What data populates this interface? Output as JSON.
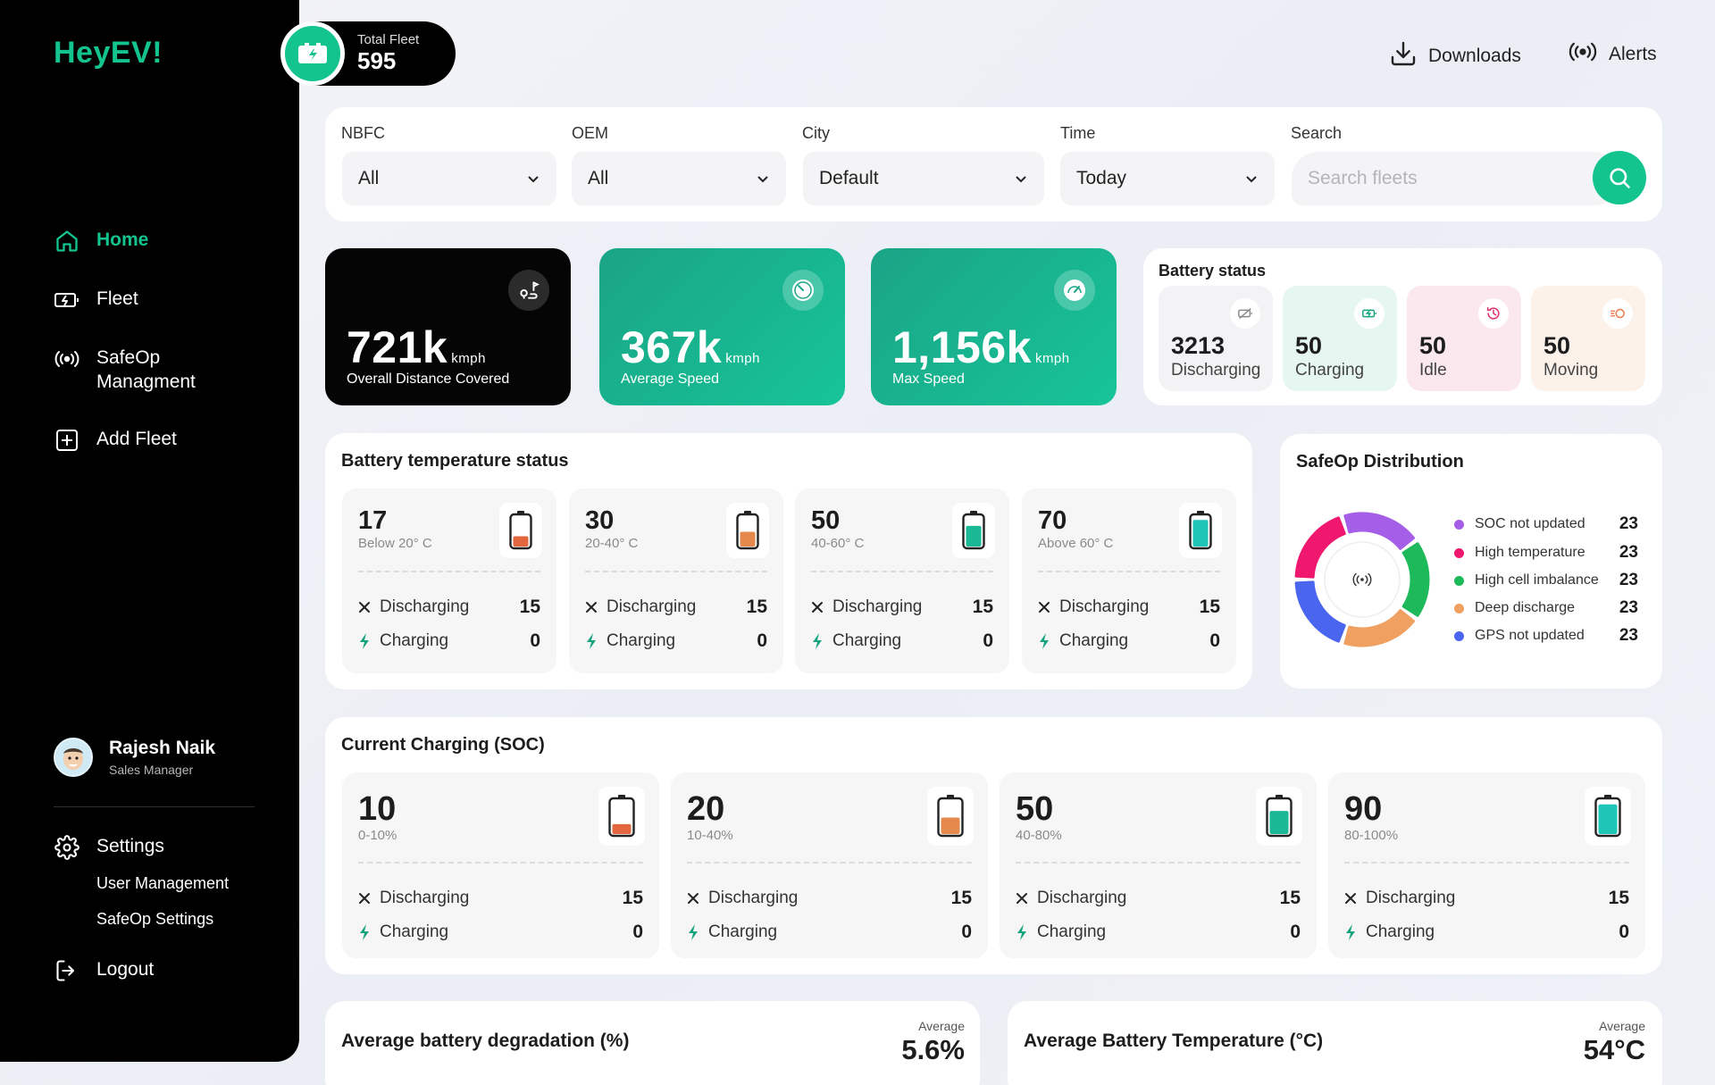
{
  "app": {
    "logo": "HeyEV!"
  },
  "fleet_badge": {
    "label": "Total Fleet",
    "value": "595"
  },
  "top_actions": {
    "downloads": "Downloads",
    "alerts": "Alerts"
  },
  "sidebar": {
    "items": [
      {
        "label": "Home",
        "icon": "home-icon",
        "active": true
      },
      {
        "label": "Fleet",
        "icon": "battery-charge-icon"
      },
      {
        "label": "SafeOp\nManagment",
        "icon": "broadcast-icon"
      },
      {
        "label": "Add Fleet",
        "icon": "plus-square-icon"
      }
    ],
    "profile": {
      "name": "Rajesh Naik",
      "role": "Sales Manager"
    },
    "settings": {
      "label": "Settings",
      "sub": [
        "User Management",
        "SafeOp Settings"
      ]
    },
    "logout": "Logout"
  },
  "filters": {
    "nbfc": {
      "label": "NBFC",
      "value": "All"
    },
    "oem": {
      "label": "OEM",
      "value": "All"
    },
    "city": {
      "label": "City",
      "value": "Default"
    },
    "time": {
      "label": "Time",
      "value": "Today"
    },
    "search": {
      "label": "Search",
      "placeholder": "Search fleets"
    }
  },
  "kpis": [
    {
      "value": "721k",
      "unit": "kmph",
      "caption": "Overall Distance Covered"
    },
    {
      "value": "367k",
      "unit": "kmph",
      "caption": "Average Speed"
    },
    {
      "value": "1,156k",
      "unit": "kmph",
      "caption": "Max Speed"
    }
  ],
  "battery_status": {
    "title": "Battery status",
    "items": [
      {
        "value": "3213",
        "label": "Discharging",
        "color": "#f3f3f5",
        "icon_color": "#8a8a8e"
      },
      {
        "value": "50",
        "label": "Charging",
        "color": "#e6f6f0",
        "icon_color": "#14a37f"
      },
      {
        "value": "50",
        "label": "Idle",
        "color": "#fbe7ee",
        "icon_color": "#e2336f"
      },
      {
        "value": "50",
        "label": "Moving",
        "color": "#fcf2ea",
        "icon_color": "#ec7a4a"
      }
    ]
  },
  "temperature": {
    "title": "Battery temperature status",
    "tiles": [
      {
        "value": "17",
        "range": "Below 20° C",
        "discharging_label": "Discharging",
        "discharging": "15",
        "charging_label": "Charging",
        "charging": "0",
        "fill": 0.35,
        "color": "#e4663f"
      },
      {
        "value": "30",
        "range": "20-40° C",
        "discharging_label": "Discharging",
        "discharging": "15",
        "charging_label": "Charging",
        "charging": "0",
        "fill": 0.5,
        "color": "#e58a4c"
      },
      {
        "value": "50",
        "range": "40-60° C",
        "discharging_label": "Discharging",
        "discharging": "15",
        "charging_label": "Charging",
        "charging": "0",
        "fill": 0.7,
        "color": "#1bb896"
      },
      {
        "value": "70",
        "range": "Above 60° C",
        "discharging_label": "Discharging",
        "discharging": "15",
        "charging_label": "Charging",
        "charging": "0",
        "fill": 0.9,
        "color": "#1dc6b6"
      }
    ]
  },
  "safeop": {
    "title": "SafeOp Distribution",
    "legend": [
      {
        "label": "SOC not updated",
        "value": "23",
        "color": "#a45ee8"
      },
      {
        "label": "High temperature",
        "value": "23",
        "color": "#f0186e"
      },
      {
        "label": "High cell imbalance",
        "value": "23",
        "color": "#1eb95a"
      },
      {
        "label": "Deep discharge",
        "value": "23",
        "color": "#f0a060"
      },
      {
        "label": "GPS not updated",
        "value": "23",
        "color": "#4a65ee"
      }
    ]
  },
  "soc": {
    "title": "Current Charging (SOC)",
    "tiles": [
      {
        "value": "10",
        "range": "0-10%",
        "discharging_label": "Discharging",
        "discharging": "15",
        "charging_label": "Charging",
        "charging": "0",
        "fill": 0.3,
        "color": "#e4663f"
      },
      {
        "value": "20",
        "range": "10-40%",
        "discharging_label": "Discharging",
        "discharging": "15",
        "charging_label": "Charging",
        "charging": "0",
        "fill": 0.5,
        "color": "#e58a4c"
      },
      {
        "value": "50",
        "range": "40-80%",
        "discharging_label": "Discharging",
        "discharging": "15",
        "charging_label": "Charging",
        "charging": "0",
        "fill": 0.7,
        "color": "#1bb896"
      },
      {
        "value": "90",
        "range": "80-100%",
        "discharging_label": "Discharging",
        "discharging": "15",
        "charging_label": "Charging",
        "charging": "0",
        "fill": 0.9,
        "color": "#1dc6b6"
      }
    ]
  },
  "bottom": {
    "degradation": {
      "title": "Average battery  degradation  (%)",
      "caption": "Average",
      "value": "5.6%"
    },
    "temperature": {
      "title": "Average Battery Temperature (°C)",
      "caption": "Average",
      "value": "54°C"
    }
  },
  "colors": {
    "accent": "#14c48f",
    "dark": "#000000"
  }
}
